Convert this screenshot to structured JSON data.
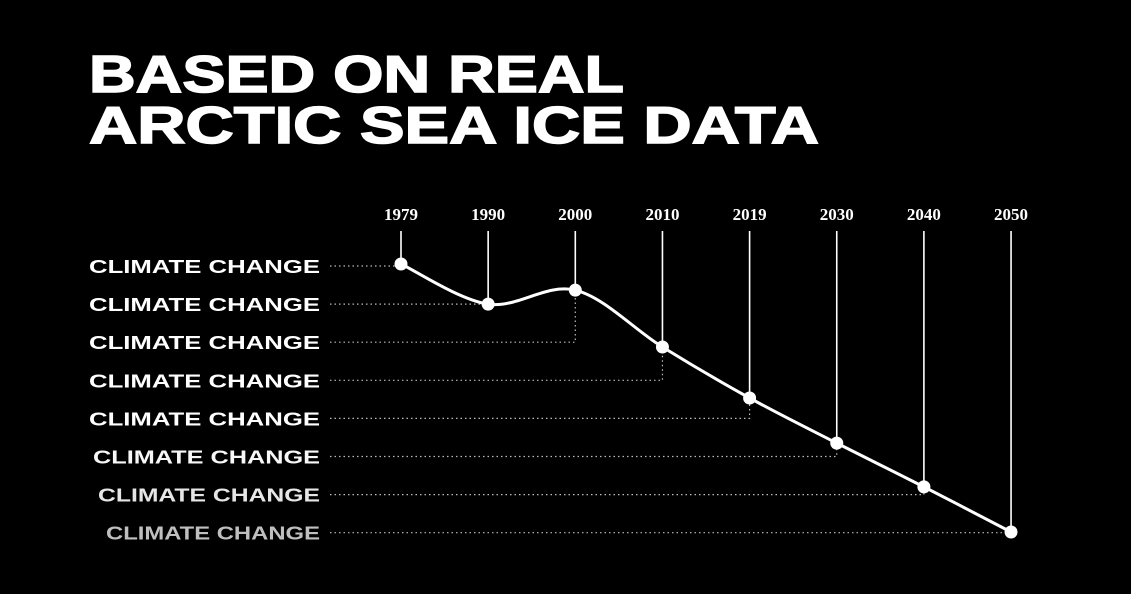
{
  "chart_data": {
    "type": "line",
    "title_lines": [
      "BASED ON REAL",
      "ARCTIC SEA ICE DATA"
    ],
    "x": [
      "1979",
      "1990",
      "2000",
      "2010",
      "2019",
      "2030",
      "2040",
      "2050"
    ],
    "values": [
      7.05,
      6.16,
      6.47,
      5.21,
      4.08,
      3.08,
      2.11,
      1.11
    ],
    "ylim": [
      1,
      8
    ],
    "row_labels": [
      "CLIMATE CHANGE",
      "CLIMATE CHANGE",
      "CLIMATE CHANGE",
      "CLIMATE CHANGE",
      "CLIMATE CHANGE",
      "CLIMATE CHANGE",
      "CLIMATE CHANGE",
      "CLIMATE CHANGE"
    ],
    "grid": false,
    "legend": "none",
    "colors": {
      "background": "#000000",
      "foreground": "#ffffff"
    }
  }
}
